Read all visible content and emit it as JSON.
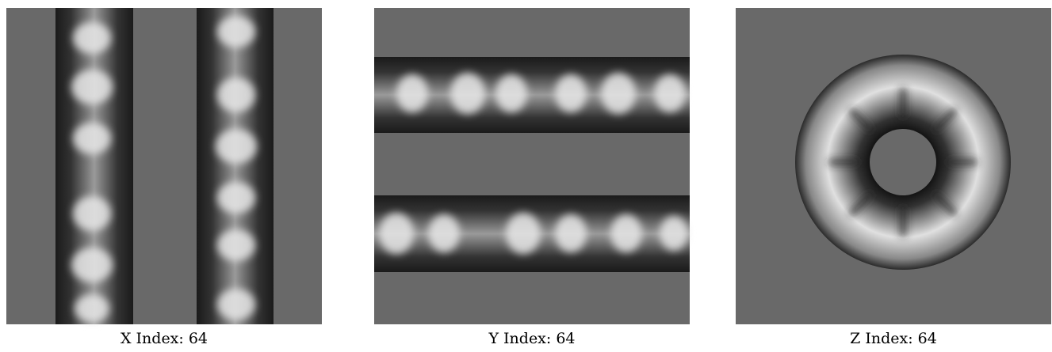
{
  "panels": [
    {
      "caption": "X Index: 64"
    },
    {
      "caption": "Y Index: 64"
    },
    {
      "caption": "Z Index: 64"
    }
  ]
}
